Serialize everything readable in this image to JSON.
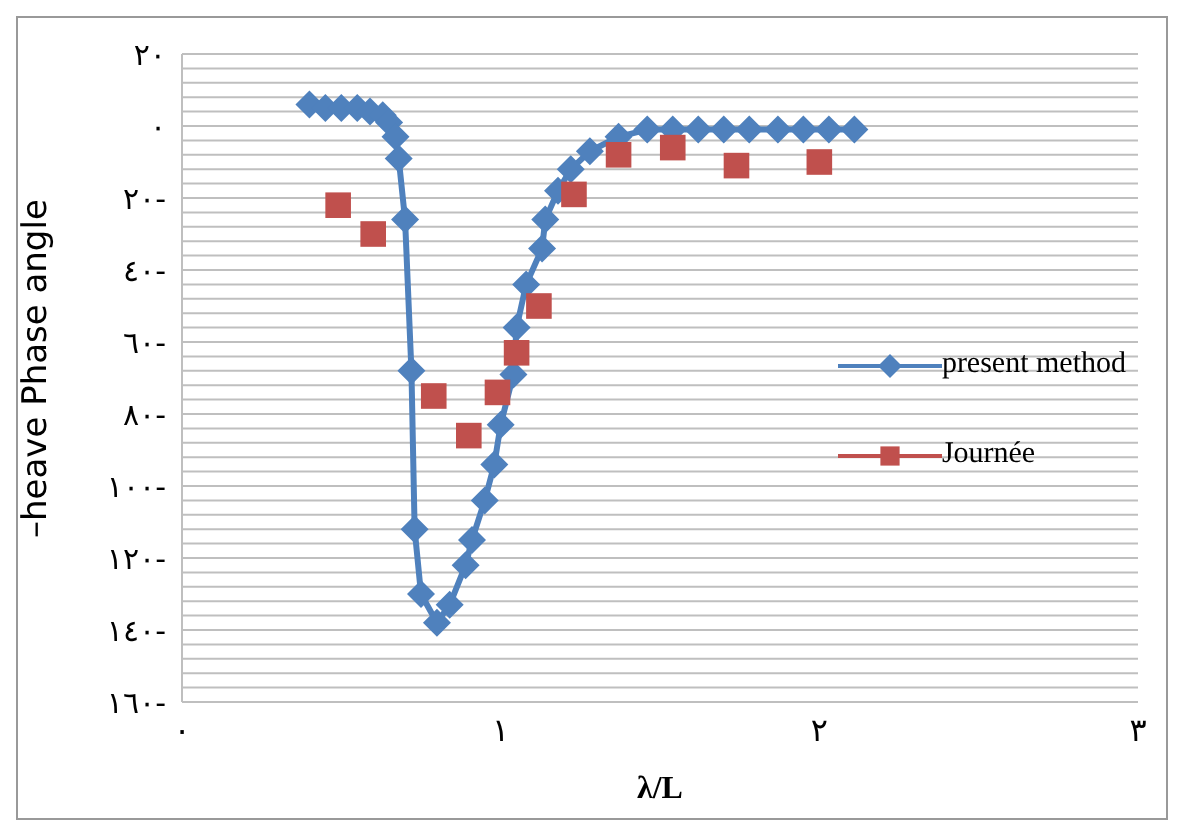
{
  "chart_data": {
    "type": "line",
    "xlabel": "λ/L",
    "ylabel": "–heave Phase angle",
    "xlim": [
      0,
      3
    ],
    "xticks": [
      {
        "value": 0,
        "label": "٠"
      },
      {
        "value": 1,
        "label": "١"
      },
      {
        "value": 2,
        "label": "٢"
      },
      {
        "value": 3,
        "label": "٣"
      }
    ],
    "ylim": [
      -160,
      20
    ],
    "yticks": [
      {
        "value": 20,
        "label": "٢٠"
      },
      {
        "value": 0,
        "label": "٠"
      },
      {
        "value": -20,
        "label": "٢٠-"
      },
      {
        "value": -40,
        "label": "٤٠-"
      },
      {
        "value": -60,
        "label": "٦٠-"
      },
      {
        "value": -80,
        "label": "٨٠-"
      },
      {
        "value": -100,
        "label": "١٠٠-"
      },
      {
        "value": -120,
        "label": "١٢٠-"
      },
      {
        "value": -140,
        "label": "١٤٠-"
      },
      {
        "value": -160,
        "label": "١٦٠-"
      }
    ],
    "grid": "y",
    "legend": "right",
    "series": [
      {
        "name": "present method",
        "color": "#4f81bd",
        "marker": "diamond",
        "line_style": "solid",
        "x": [
          0.4,
          0.45,
          0.5,
          0.55,
          0.59,
          0.63,
          0.65,
          0.67,
          0.68,
          0.7,
          0.72,
          0.73,
          0.75,
          0.8,
          0.84,
          0.89,
          0.91,
          0.95,
          0.98,
          1.0,
          1.04,
          1.05,
          1.08,
          1.13,
          1.14,
          1.18,
          1.22,
          1.28,
          1.37,
          1.46,
          1.54,
          1.62,
          1.7,
          1.78,
          1.87,
          1.95,
          2.03,
          2.11
        ],
        "values": [
          6,
          5,
          5,
          5,
          4,
          3,
          1,
          -3,
          -9,
          -26,
          -68,
          -112,
          -130,
          -138,
          -133,
          -122,
          -115,
          -104,
          -94,
          -83,
          -69,
          -56,
          -44,
          -34,
          -26,
          -18,
          -12,
          -7,
          -3,
          -1,
          -1,
          -1,
          -1,
          -1,
          -1,
          -1,
          -1,
          -1
        ]
      },
      {
        "name": "Journée",
        "type": "scatter",
        "color": "#c0504d",
        "marker": "square",
        "x": [
          0.49,
          0.6,
          0.79,
          0.9,
          0.99,
          1.05,
          1.12,
          1.23,
          1.37,
          1.54,
          1.74,
          2.0
        ],
        "values": [
          -22,
          -30,
          -75,
          -86,
          -74,
          -63,
          -50,
          -19,
          -8,
          -6,
          -11,
          -10
        ]
      }
    ]
  }
}
